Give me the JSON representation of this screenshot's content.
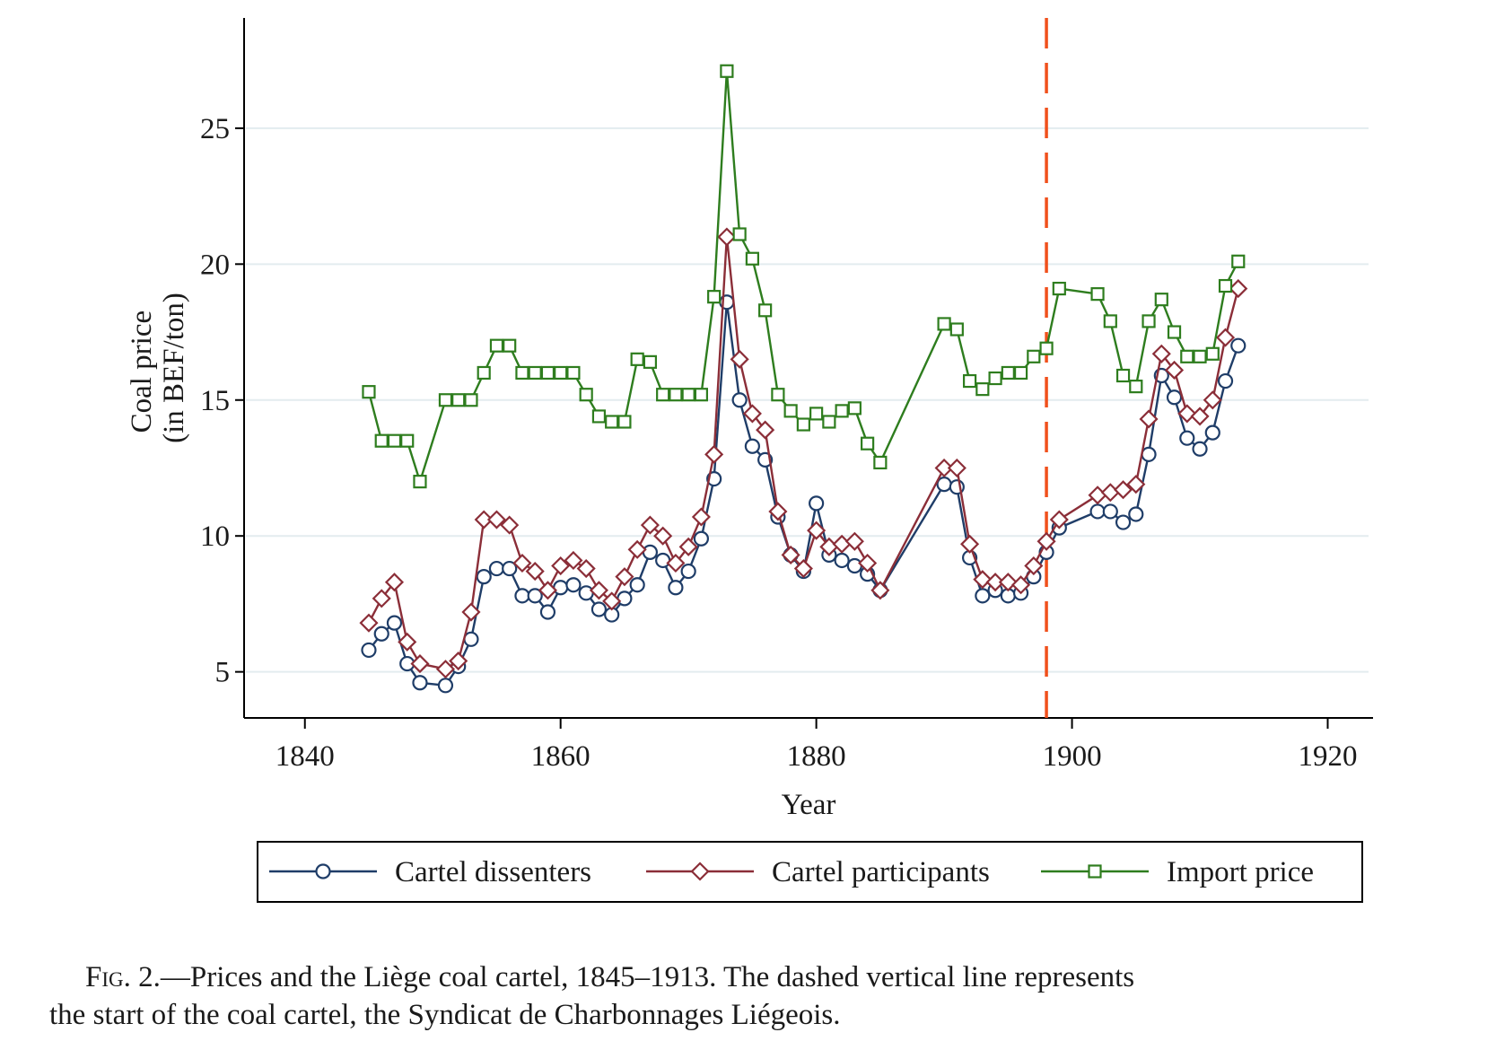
{
  "chart_data": {
    "type": "line",
    "xlabel": "Year",
    "ylabel": [
      "Coal price",
      "(in BEF/ton)"
    ],
    "xlim": [
      1837,
      1922
    ],
    "ylim": [
      3.8,
      28.0
    ],
    "xticks": [
      1840,
      1860,
      1880,
      1900,
      1920
    ],
    "yticks": [
      5,
      10,
      15,
      20,
      25
    ],
    "grid": "horizontal",
    "legend": "bottom",
    "cartel_start_year": 1898,
    "series": [
      {
        "name": "Cartel dissenters",
        "color": "#1f3d68",
        "marker": "circle",
        "points": [
          [
            1845,
            5.8
          ],
          [
            1846,
            6.4
          ],
          [
            1847,
            6.8
          ],
          [
            1848,
            5.3
          ],
          [
            1849,
            4.6
          ],
          [
            1851,
            4.5
          ],
          [
            1852,
            5.2
          ],
          [
            1853,
            6.2
          ],
          [
            1854,
            8.5
          ],
          [
            1855,
            8.8
          ],
          [
            1856,
            8.8
          ],
          [
            1857,
            7.8
          ],
          [
            1858,
            7.8
          ],
          [
            1859,
            7.2
          ],
          [
            1860,
            8.1
          ],
          [
            1861,
            8.2
          ],
          [
            1862,
            7.9
          ],
          [
            1863,
            7.3
          ],
          [
            1864,
            7.1
          ],
          [
            1865,
            7.7
          ],
          [
            1866,
            8.2
          ],
          [
            1867,
            9.4
          ],
          [
            1868,
            9.1
          ],
          [
            1869,
            8.1
          ],
          [
            1870,
            8.7
          ],
          [
            1871,
            9.9
          ],
          [
            1872,
            12.1
          ],
          [
            1873,
            18.6
          ],
          [
            1874,
            15.0
          ],
          [
            1875,
            13.3
          ],
          [
            1876,
            12.8
          ],
          [
            1877,
            10.7
          ],
          [
            1878,
            9.3
          ],
          [
            1879,
            8.7
          ],
          [
            1880,
            11.2
          ],
          [
            1881,
            9.3
          ],
          [
            1882,
            9.1
          ],
          [
            1883,
            8.9
          ],
          [
            1884,
            8.6
          ],
          [
            1885,
            8.0
          ],
          [
            1890,
            11.9
          ],
          [
            1891,
            11.8
          ],
          [
            1892,
            9.2
          ],
          [
            1893,
            7.8
          ],
          [
            1894,
            8.0
          ],
          [
            1895,
            7.8
          ],
          [
            1896,
            7.9
          ],
          [
            1897,
            8.5
          ],
          [
            1898,
            9.4
          ],
          [
            1899,
            10.3
          ],
          [
            1902,
            10.9
          ],
          [
            1903,
            10.9
          ],
          [
            1904,
            10.5
          ],
          [
            1905,
            10.8
          ],
          [
            1906,
            13.0
          ],
          [
            1907,
            15.9
          ],
          [
            1908,
            15.1
          ],
          [
            1909,
            13.6
          ],
          [
            1910,
            13.2
          ],
          [
            1911,
            13.8
          ],
          [
            1912,
            15.7
          ],
          [
            1913,
            17.0
          ]
        ]
      },
      {
        "name": "Cartel participants",
        "color": "#8b2e38",
        "marker": "diamond",
        "points": [
          [
            1845,
            6.8
          ],
          [
            1846,
            7.7
          ],
          [
            1847,
            8.3
          ],
          [
            1848,
            6.1
          ],
          [
            1849,
            5.3
          ],
          [
            1851,
            5.1
          ],
          [
            1852,
            5.4
          ],
          [
            1853,
            7.2
          ],
          [
            1854,
            10.6
          ],
          [
            1855,
            10.6
          ],
          [
            1856,
            10.4
          ],
          [
            1857,
            9.0
          ],
          [
            1858,
            8.7
          ],
          [
            1859,
            8.0
          ],
          [
            1860,
            8.9
          ],
          [
            1861,
            9.1
          ],
          [
            1862,
            8.8
          ],
          [
            1863,
            8.0
          ],
          [
            1864,
            7.6
          ],
          [
            1865,
            8.5
          ],
          [
            1866,
            9.5
          ],
          [
            1867,
            10.4
          ],
          [
            1868,
            10.0
          ],
          [
            1869,
            9.0
          ],
          [
            1870,
            9.6
          ],
          [
            1871,
            10.7
          ],
          [
            1872,
            13.0
          ],
          [
            1873,
            21.0
          ],
          [
            1874,
            16.5
          ],
          [
            1875,
            14.5
          ],
          [
            1876,
            13.9
          ],
          [
            1877,
            10.9
          ],
          [
            1878,
            9.3
          ],
          [
            1879,
            8.8
          ],
          [
            1880,
            10.2
          ],
          [
            1881,
            9.6
          ],
          [
            1882,
            9.7
          ],
          [
            1883,
            9.8
          ],
          [
            1884,
            9.0
          ],
          [
            1885,
            8.0
          ],
          [
            1890,
            12.5
          ],
          [
            1891,
            12.5
          ],
          [
            1892,
            9.7
          ],
          [
            1893,
            8.4
          ],
          [
            1894,
            8.3
          ],
          [
            1895,
            8.3
          ],
          [
            1896,
            8.2
          ],
          [
            1897,
            8.9
          ],
          [
            1898,
            9.8
          ],
          [
            1899,
            10.6
          ],
          [
            1902,
            11.5
          ],
          [
            1903,
            11.6
          ],
          [
            1904,
            11.7
          ],
          [
            1905,
            11.9
          ],
          [
            1906,
            14.3
          ],
          [
            1907,
            16.7
          ],
          [
            1908,
            16.1
          ],
          [
            1909,
            14.5
          ],
          [
            1910,
            14.4
          ],
          [
            1911,
            15.0
          ],
          [
            1912,
            17.3
          ],
          [
            1913,
            19.1
          ]
        ]
      },
      {
        "name": "Import price",
        "color": "#2e7d1e",
        "marker": "square",
        "points": [
          [
            1845,
            15.3
          ],
          [
            1846,
            13.5
          ],
          [
            1847,
            13.5
          ],
          [
            1848,
            13.5
          ],
          [
            1849,
            12.0
          ],
          [
            1851,
            15.0
          ],
          [
            1852,
            15.0
          ],
          [
            1853,
            15.0
          ],
          [
            1854,
            16.0
          ],
          [
            1855,
            17.0
          ],
          [
            1856,
            17.0
          ],
          [
            1857,
            16.0
          ],
          [
            1858,
            16.0
          ],
          [
            1859,
            16.0
          ],
          [
            1860,
            16.0
          ],
          [
            1861,
            16.0
          ],
          [
            1862,
            15.2
          ],
          [
            1863,
            14.4
          ],
          [
            1864,
            14.2
          ],
          [
            1865,
            14.2
          ],
          [
            1866,
            16.5
          ],
          [
            1867,
            16.4
          ],
          [
            1868,
            15.2
          ],
          [
            1869,
            15.2
          ],
          [
            1870,
            15.2
          ],
          [
            1871,
            15.2
          ],
          [
            1872,
            18.8
          ],
          [
            1873,
            27.1
          ],
          [
            1874,
            21.1
          ],
          [
            1875,
            20.2
          ],
          [
            1876,
            18.3
          ],
          [
            1877,
            15.2
          ],
          [
            1878,
            14.6
          ],
          [
            1879,
            14.1
          ],
          [
            1880,
            14.5
          ],
          [
            1881,
            14.2
          ],
          [
            1882,
            14.6
          ],
          [
            1883,
            14.7
          ],
          [
            1884,
            13.4
          ],
          [
            1885,
            12.7
          ],
          [
            1890,
            17.8
          ],
          [
            1891,
            17.6
          ],
          [
            1892,
            15.7
          ],
          [
            1893,
            15.4
          ],
          [
            1894,
            15.8
          ],
          [
            1895,
            16.0
          ],
          [
            1896,
            16.0
          ],
          [
            1897,
            16.6
          ],
          [
            1898,
            16.9
          ],
          [
            1899,
            19.1
          ],
          [
            1902,
            18.9
          ],
          [
            1903,
            17.9
          ],
          [
            1904,
            15.9
          ],
          [
            1905,
            15.5
          ],
          [
            1906,
            17.9
          ],
          [
            1907,
            18.7
          ],
          [
            1908,
            17.5
          ],
          [
            1909,
            16.6
          ],
          [
            1910,
            16.6
          ],
          [
            1911,
            16.7
          ],
          [
            1912,
            19.2
          ],
          [
            1913,
            20.1
          ]
        ]
      }
    ]
  },
  "caption": {
    "fig": "Fig. 2.",
    "text_line1": "—Prices and the Liège coal cartel, 1845–1913. The dashed vertical line represents",
    "text_line2": "the start of the coal cartel, the Syndicat de Charbonnages Liégeois."
  }
}
